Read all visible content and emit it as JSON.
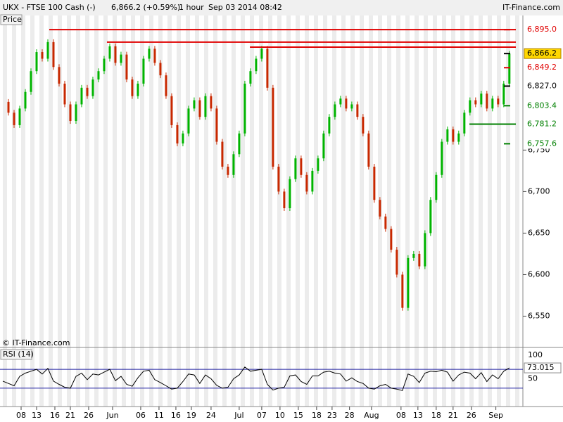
{
  "header": {
    "symbol": "UKX - FTSE 100 Cash (-)",
    "quote": "6,866.2 (+0.59%)",
    "interval": "1 hour",
    "date": "Sep 03 2014 08:42",
    "brand": "IT-Finance.com",
    "panel": "Price",
    "copyright": "© IT-Finance.com"
  },
  "chart_data": [
    {
      "type": "candle",
      "title": "Price",
      "xlim": [
        -0.5,
        92.4
      ],
      "ylim": [
        6514,
        6907
      ],
      "yticks": [
        {
          "value": 6550,
          "label": "6,550"
        },
        {
          "value": 6600,
          "label": "6,600"
        },
        {
          "value": 6650,
          "label": "6,650"
        },
        {
          "value": 6700,
          "label": "6,700"
        },
        {
          "value": 6750,
          "label": "6,750"
        }
      ],
      "xticks": [
        {
          "value": 3.25,
          "label": "08"
        },
        {
          "value": 6,
          "label": "13"
        },
        {
          "value": 9.25,
          "label": "16"
        },
        {
          "value": 12,
          "label": "21"
        },
        {
          "value": 15.25,
          "label": "26"
        },
        {
          "value": 19.5,
          "label": "Jun"
        },
        {
          "value": 24.5,
          "label": "06"
        },
        {
          "value": 27.75,
          "label": "11"
        },
        {
          "value": 30.75,
          "label": "16"
        },
        {
          "value": 33.5,
          "label": "19"
        },
        {
          "value": 37,
          "label": "24"
        },
        {
          "value": 42,
          "label": "Jul"
        },
        {
          "value": 46,
          "label": "07"
        },
        {
          "value": 49.25,
          "label": "10"
        },
        {
          "value": 52.5,
          "label": "15"
        },
        {
          "value": 55.75,
          "label": "18"
        },
        {
          "value": 58.5,
          "label": "23"
        },
        {
          "value": 61.6,
          "label": "28"
        },
        {
          "value": 65.5,
          "label": "Aug"
        },
        {
          "value": 70.75,
          "label": "08"
        },
        {
          "value": 73.75,
          "label": "13"
        },
        {
          "value": 77,
          "label": "18"
        },
        {
          "value": 80,
          "label": "21"
        },
        {
          "value": 83.25,
          "label": "26"
        },
        {
          "value": 87.6,
          "label": "Sep"
        }
      ],
      "series": [
        {
          "name": "Close",
          "up_color": "#00b400",
          "down_color": "#c82800",
          "values": [
            6808,
            6795,
            6780,
            6800,
            6820,
            6845,
            6868,
            6860,
            6880,
            6850,
            6830,
            6805,
            6785,
            6805,
            6825,
            6815,
            6835,
            6845,
            6860,
            6875,
            6855,
            6865,
            6835,
            6815,
            6830,
            6860,
            6872,
            6855,
            6840,
            6815,
            6780,
            6758,
            6770,
            6800,
            6810,
            6790,
            6815,
            6800,
            6760,
            6730,
            6720,
            6745,
            6770,
            6830,
            6845,
            6860,
            6872,
            6825,
            6730,
            6700,
            6680,
            6715,
            6740,
            6720,
            6700,
            6725,
            6740,
            6770,
            6790,
            6805,
            6812,
            6800,
            6805,
            6790,
            6770,
            6730,
            6690,
            6670,
            6655,
            6630,
            6600,
            6560,
            6620,
            6625,
            6610,
            6650,
            6690,
            6720,
            6760,
            6775,
            6760,
            6770,
            6795,
            6810,
            6805,
            6818,
            6800,
            6812,
            6805,
            6830,
            6866
          ]
        }
      ],
      "lines": [
        {
          "value": 6895,
          "start": 8.25,
          "color": "#e00000"
        },
        {
          "value": 6880,
          "start": 18.5,
          "color": "#e00000"
        },
        {
          "value": 6874,
          "start": 43.9,
          "color": "#e00000"
        },
        {
          "value": 6781.2,
          "start": 82.9,
          "color": "#008000"
        }
      ],
      "levels": [
        {
          "value": 6895,
          "label": "6,895.0",
          "color": "#e00000"
        },
        {
          "value": 6866.2,
          "label": "6,866.2",
          "color": "#000000",
          "fill": "#ffd700"
        },
        {
          "value": 6849.2,
          "label": "6,849.2",
          "color": "#e00000"
        },
        {
          "value": 6827,
          "label": "6,827.0",
          "color": "#000000"
        },
        {
          "value": 6803.4,
          "label": "6,803.4",
          "color": "#008000"
        },
        {
          "value": 6781.2,
          "label": "6,781.2",
          "color": "#008000"
        },
        {
          "value": 6757.6,
          "label": "6,757.6",
          "color": "#008000"
        }
      ]
    },
    {
      "type": "line",
      "title": "RSI (14)",
      "ylim": [
        0,
        100
      ],
      "yticks": [
        100,
        50
      ],
      "bands": [
        70,
        30
      ],
      "band_color": "#2020a0",
      "last_label": "73.015",
      "series": [
        {
          "name": "RSI",
          "color": "#000000",
          "values": [
            45,
            40,
            35,
            55,
            62,
            66,
            70,
            60,
            72,
            45,
            38,
            32,
            30,
            55,
            62,
            48,
            60,
            58,
            64,
            70,
            46,
            55,
            38,
            34,
            52,
            66,
            68,
            48,
            42,
            35,
            28,
            30,
            44,
            60,
            58,
            40,
            58,
            50,
            36,
            30,
            32,
            50,
            58,
            75,
            66,
            68,
            70,
            38,
            26,
            30,
            32,
            56,
            58,
            44,
            38,
            56,
            56,
            64,
            66,
            62,
            60,
            45,
            52,
            44,
            40,
            30,
            28,
            35,
            38,
            30,
            28,
            25,
            60,
            55,
            42,
            62,
            66,
            65,
            68,
            64,
            45,
            58,
            64,
            62,
            50,
            63,
            44,
            58,
            50,
            66,
            73.015
          ]
        }
      ]
    }
  ]
}
